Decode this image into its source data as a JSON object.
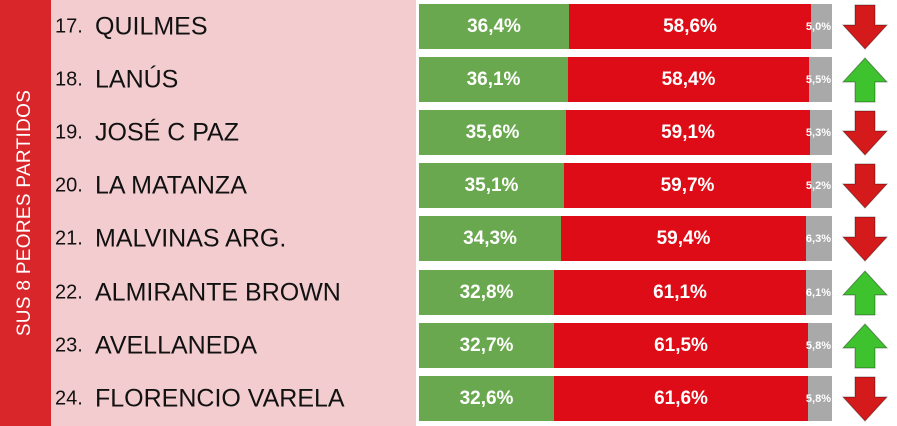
{
  "side_label": "SUS 8 PEORES PARTIDOS",
  "colors": {
    "green": "#6aa84f",
    "red": "#dd0c16",
    "gray": "#a9a9a9",
    "arrow_up": "#3ec22e",
    "arrow_down": "#d41a1a"
  },
  "chart_data": {
    "type": "bar",
    "stacked": true,
    "categories": [
      "QUILMES",
      "LANÚS",
      "JOSÉ C PAZ",
      "LA MATANZA",
      "MALVINAS ARG.",
      "ALMIRANTE BROWN",
      "AVELLANEDA",
      "FLORENCIO VARELA"
    ],
    "series": [
      {
        "values": [
          36.4,
          36.1,
          35.6,
          35.1,
          34.3,
          32.8,
          32.7,
          32.6
        ]
      },
      {
        "values": [
          58.6,
          58.4,
          59.1,
          59.7,
          59.4,
          61.1,
          61.5,
          61.6
        ]
      },
      {
        "values": [
          5.0,
          5.5,
          5.3,
          5.2,
          6.3,
          6.1,
          5.8,
          5.8
        ]
      }
    ]
  },
  "rows": [
    {
      "rank": "17.",
      "name": "QUILMES",
      "green": "36,4%",
      "red": "58,6%",
      "gray": "5,0%",
      "trend": "down"
    },
    {
      "rank": "18.",
      "name": "LANÚS",
      "green": "36,1%",
      "red": "58,4%",
      "gray": "5,5%",
      "trend": "up"
    },
    {
      "rank": "19.",
      "name": "JOSÉ C PAZ",
      "green": "35,6%",
      "red": "59,1%",
      "gray": "5,3%",
      "trend": "down"
    },
    {
      "rank": "20.",
      "name": "LA MATANZA",
      "green": "35,1%",
      "red": "59,7%",
      "gray": "5,2%",
      "trend": "down"
    },
    {
      "rank": "21.",
      "name": "MALVINAS ARG.",
      "green": "34,3%",
      "red": "59,4%",
      "gray": "6,3%",
      "trend": "down"
    },
    {
      "rank": "22.",
      "name": "ALMIRANTE BROWN",
      "green": "32,8%",
      "red": "61,1%",
      "gray": "6,1%",
      "trend": "up"
    },
    {
      "rank": "23.",
      "name": "AVELLANEDA",
      "green": "32,7%",
      "red": "61,5%",
      "gray": "5,8%",
      "trend": "up"
    },
    {
      "rank": "24.",
      "name": "FLORENCIO VARELA",
      "green": "32,6%",
      "red": "61,6%",
      "gray": "5,8%",
      "trend": "down"
    }
  ]
}
